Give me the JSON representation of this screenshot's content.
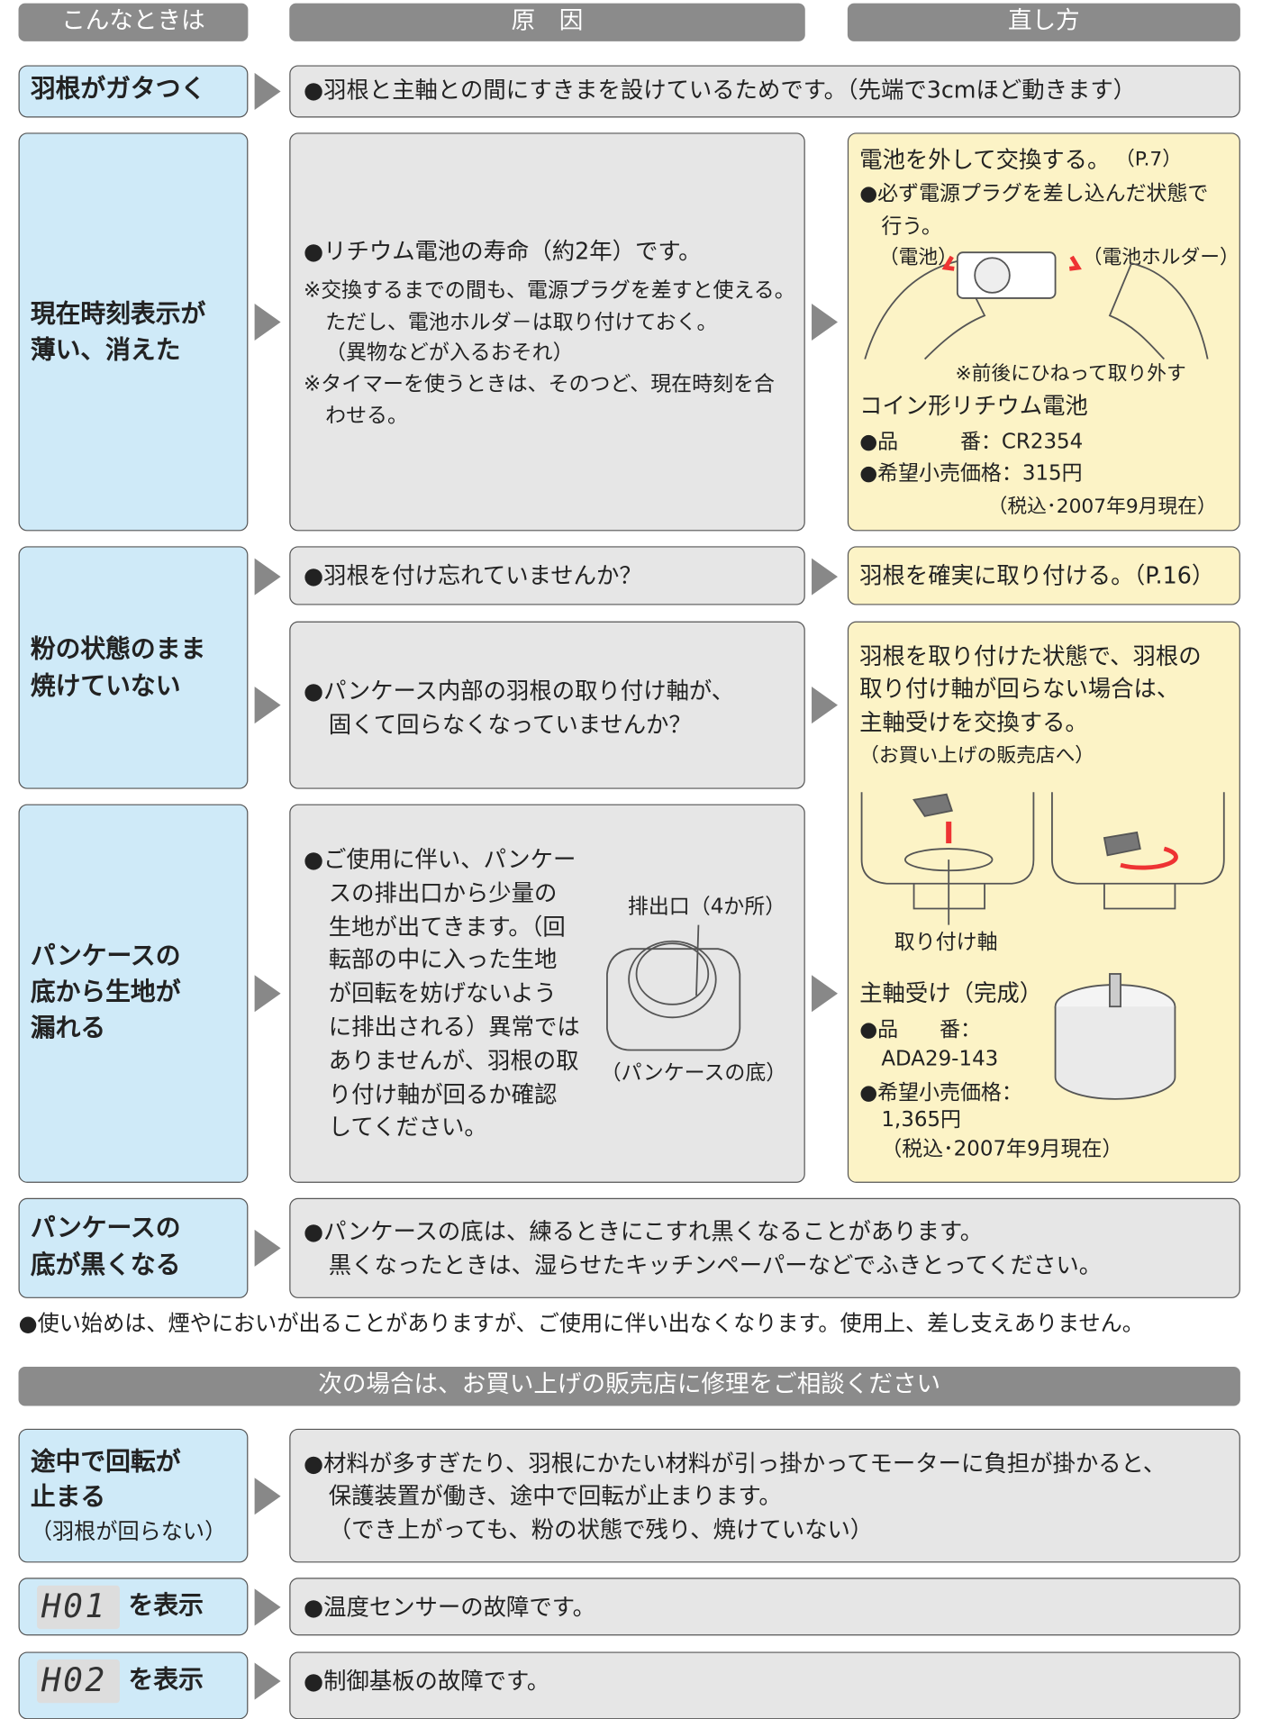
{
  "header": {
    "situation": "こんなときは",
    "cause": "原　因",
    "fix": "直し方"
  },
  "rows": [
    {
      "symptom": [
        "羽根がガタつく"
      ],
      "cause": [
        "●羽根と主軸との間にすきまを設けているためです。（先端で3cmほど動きます）"
      ]
    },
    {
      "symptom": [
        "現在時刻表示が",
        "薄い、消えた"
      ],
      "cause": [
        "●リチウム電池の寿命（約2年）です。",
        "※交換するまでの間も、電源プラグを差すと使える。",
        "ただし、電池ホルダ－は取り付けておく。",
        "（異物などが入るおそれ）",
        "※タイマーを使うときは、そのつど、現在時刻を合",
        "わせる。"
      ],
      "fix": {
        "title": "電池を外して交換する。",
        "page": "（P.7）",
        "lines": [
          "●必ず電源プラグを差し込んだ状態で",
          "行う。"
        ],
        "labels": [
          "（電池）",
          "（電池ホルダー）",
          "※前後にひねって取り外す"
        ],
        "part": "コイン形リチウム電池",
        "details": [
          "●品　　　番：CR2354",
          "●希望小売価格：315円",
          "（税込･2007年9月現在）"
        ]
      }
    },
    {
      "symptom": [
        "粉の状態のまま",
        "焼けていない"
      ],
      "causes": [
        [
          "●羽根を付け忘れていませんか？"
        ],
        [
          "●パンケース内部の羽根の取り付け軸が、",
          "固くて回らなくなっていませんか？"
        ]
      ],
      "fixes": [
        [
          "羽根を確実に取り付ける。（P.16）"
        ],
        {
          "lines": [
            "羽根を取り付けた状態で、羽根の",
            "取り付け軸が回らない場合は、",
            "主軸受けを交換する。",
            "（お買い上げの販売店へ）"
          ],
          "label": "取り付け軸",
          "part": "主軸受け（完成）",
          "details": [
            "●品　　番：",
            "ADA29-143",
            "●希望小売価格：",
            "1,365円",
            "（税込･2007年9月現在）"
          ]
        }
      ]
    },
    {
      "symptom": [
        "パンケースの",
        "底から生地が",
        "漏れる"
      ],
      "cause": [
        "●ご使用に伴い、パンケー",
        "スの排出口から少量の",
        "生地が出てきます。（回",
        "転部の中に入った生地",
        "が回転を妨げないよう",
        "に排出される）異常では",
        "ありませんが、羽根の取",
        "り付け軸が回るか確認",
        "してください。"
      ],
      "labels": [
        "排出口（4か所）",
        "（パンケースの底）"
      ]
    },
    {
      "symptom": [
        "パンケースの",
        "底が黒くなる"
      ],
      "cause": [
        "●パンケースの底は、練るときにこすれ黒くなることがあります。",
        "黒くなったときは、湿らせたキッチンペーパーなどでふきとってください。"
      ]
    }
  ],
  "note": "●使い始めは、煙やにおいが出ることがありますが、ご使用に伴い出なくなります。使用上、差し支えありません。",
  "repair": {
    "title": "次の場合は、お買い上げの販売店に修理をご相談ください",
    "rows": [
      {
        "symptom": [
          "途中で回転が",
          "止まる"
        ],
        "sub": "（羽根が回らない）",
        "cause": [
          "●材料が多すぎたり、羽根にかたい材料が引っ掛かってモーターに負担が掛かると、",
          "保護装置が働き、途中で回転が止まります。",
          "（でき上がっても、粉の状態で残り、焼けていない）"
        ]
      },
      {
        "code": "H01",
        "label": "を表示",
        "cause": [
          "●温度センサーの故障です。"
        ]
      },
      {
        "code": "H02",
        "label": "を表示",
        "cause": [
          "●制御基板の故障です。"
        ]
      }
    ]
  }
}
